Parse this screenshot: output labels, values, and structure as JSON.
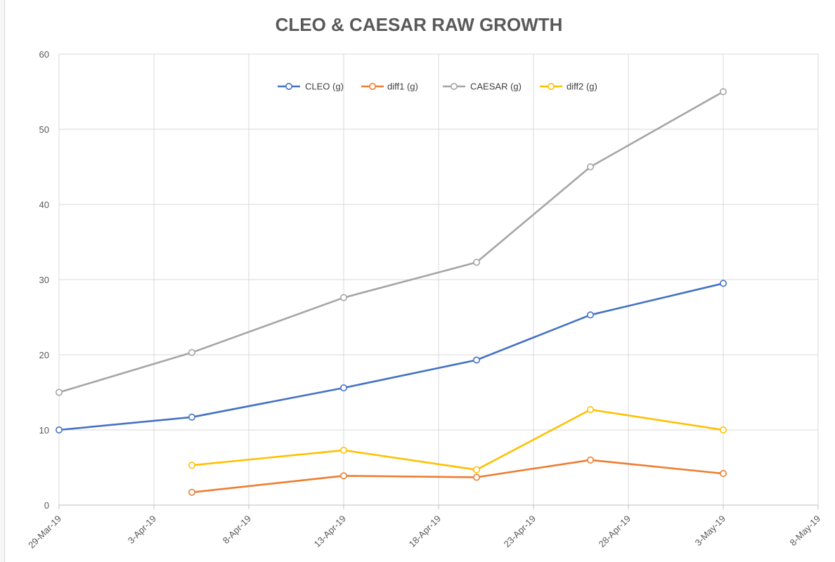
{
  "chart_data": {
    "type": "line",
    "title": "CLEO & CAESAR RAW GROWTH",
    "xlabel": "",
    "ylabel": "",
    "x_dates": [
      "2019-03-29",
      "2019-04-05",
      "2019-04-13",
      "2019-04-20",
      "2019-04-26",
      "2019-05-03"
    ],
    "x_ticks": [
      "29-Mar-19",
      "3-Apr-19",
      "8-Apr-19",
      "13-Apr-19",
      "18-Apr-19",
      "23-Apr-19",
      "28-Apr-19",
      "3-May-19",
      "8-May-19"
    ],
    "x_tick_dates": [
      "2019-03-29",
      "2019-04-03",
      "2019-04-08",
      "2019-04-13",
      "2019-04-18",
      "2019-04-23",
      "2019-04-28",
      "2019-05-03",
      "2019-05-08"
    ],
    "xlim": [
      "2019-03-29",
      "2019-05-08"
    ],
    "ylim": [
      0,
      60
    ],
    "y_ticks": [
      "0",
      "10",
      "20",
      "30",
      "40",
      "50",
      "60"
    ],
    "grid": true,
    "legend_position": "top-center",
    "series": [
      {
        "name": "CLEO (g)",
        "color": "#4472C4",
        "values": [
          10.0,
          11.7,
          15.6,
          19.3,
          25.3,
          29.5
        ]
      },
      {
        "name": "diff1 (g)",
        "color": "#ED7D31",
        "values": [
          null,
          1.7,
          3.9,
          3.7,
          6.0,
          4.2
        ]
      },
      {
        "name": "CAESAR (g)",
        "color": "#A5A5A5",
        "values": [
          15.0,
          20.3,
          27.6,
          32.3,
          45.0,
          55.0
        ]
      },
      {
        "name": "diff2 (g)",
        "color": "#FFC000",
        "values": [
          null,
          5.3,
          7.3,
          4.7,
          12.7,
          10.0
        ]
      }
    ]
  }
}
